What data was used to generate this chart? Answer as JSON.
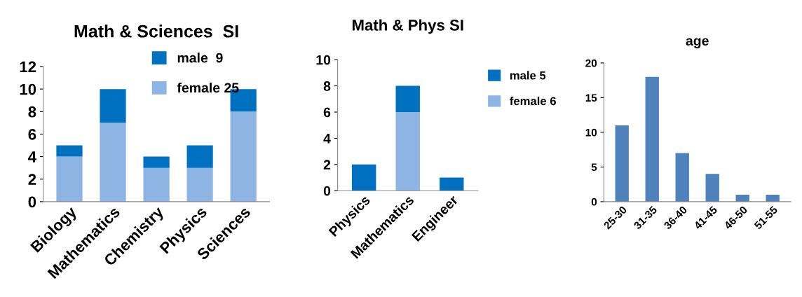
{
  "chart_data": [
    {
      "type": "bar",
      "title": "Math & Sciences  SI",
      "categories": [
        "Biology",
        "Mathematics",
        "Chemistry",
        "Physics",
        "Sciences"
      ],
      "stacked": true,
      "ylim": [
        0,
        12
      ],
      "yticks": [
        0,
        2,
        4,
        6,
        8,
        10,
        12
      ],
      "grid": false,
      "legend": "top right",
      "series": [
        {
          "name": "female 25",
          "color": "#8eb4e3",
          "values": [
            4,
            7,
            3,
            3,
            8
          ]
        },
        {
          "name": "male  9",
          "color": "#0070c0",
          "values": [
            1,
            3,
            1,
            2,
            2
          ]
        }
      ]
    },
    {
      "type": "bar",
      "title": "Math & Phys SI",
      "categories": [
        "Physics",
        "Mathematics",
        "Engineer"
      ],
      "stacked": true,
      "ylim": [
        0,
        10
      ],
      "yticks": [
        0,
        2,
        4,
        6,
        8,
        10
      ],
      "grid": false,
      "legend": "right",
      "series": [
        {
          "name": "female 6",
          "color": "#8eb4e3",
          "values": [
            0,
            6,
            0
          ]
        },
        {
          "name": "male 5",
          "color": "#0070c0",
          "values": [
            2,
            2,
            1
          ]
        }
      ]
    },
    {
      "type": "bar",
      "title": "age",
      "categories": [
        "25-30",
        "31-35",
        "36-40",
        "41-45",
        "46-50",
        "51-55"
      ],
      "ylim": [
        0,
        20
      ],
      "yticks": [
        0,
        5,
        10,
        15,
        20
      ],
      "grid": false,
      "series": [
        {
          "color": "#4f81bd",
          "values": [
            11,
            18,
            7,
            4,
            1,
            1
          ]
        }
      ]
    }
  ]
}
